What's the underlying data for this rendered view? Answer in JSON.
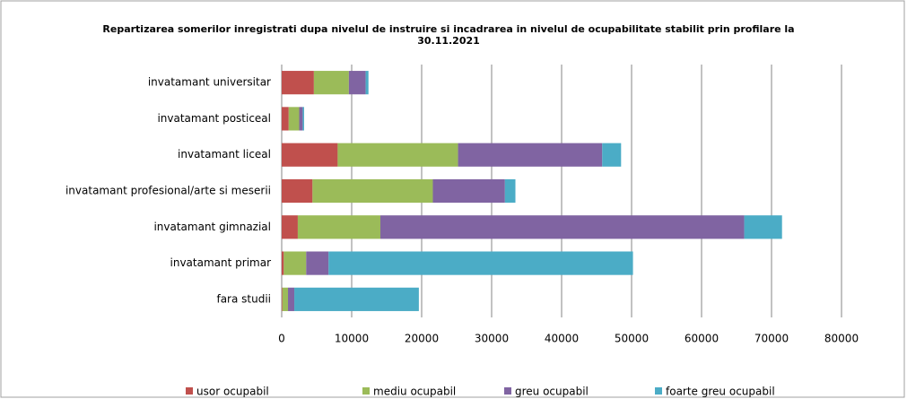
{
  "chart_data": {
    "type": "stacked-bar-horizontal",
    "title": [
      "Repartizarea somerilor inregistrati dupa  nivelul de instruire si incadrarea in nivelul de ocupabilitate stabilit prin profilare la",
      "30.11.2021"
    ],
    "categories": [
      "invatamant universitar",
      "invatamant posticeal",
      "invatamant liceal",
      "invatamant profesional/arte si meserii",
      "invatamant gimnazial",
      "invatamant primar",
      "fara studii"
    ],
    "series": [
      {
        "name": "usor ocupabil",
        "color": "#c0504d",
        "values": [
          4600,
          1000,
          8000,
          4400,
          2300,
          300,
          100
        ]
      },
      {
        "name": "mediu ocupabil",
        "color": "#9bbb59",
        "values": [
          5000,
          1500,
          17200,
          17200,
          11800,
          3200,
          800
        ]
      },
      {
        "name": "greu ocupabil",
        "color": "#8064a2",
        "values": [
          2400,
          500,
          20600,
          10300,
          52000,
          3200,
          900
        ]
      },
      {
        "name": "foarte greu ocupabil",
        "color": "#4bacc6",
        "values": [
          400,
          200,
          2700,
          1500,
          5400,
          43500,
          17800
        ]
      }
    ],
    "xlim": [
      0,
      80000
    ],
    "xticks": [
      0,
      10000,
      20000,
      30000,
      40000,
      50000,
      60000,
      70000,
      80000
    ],
    "grid": true
  }
}
